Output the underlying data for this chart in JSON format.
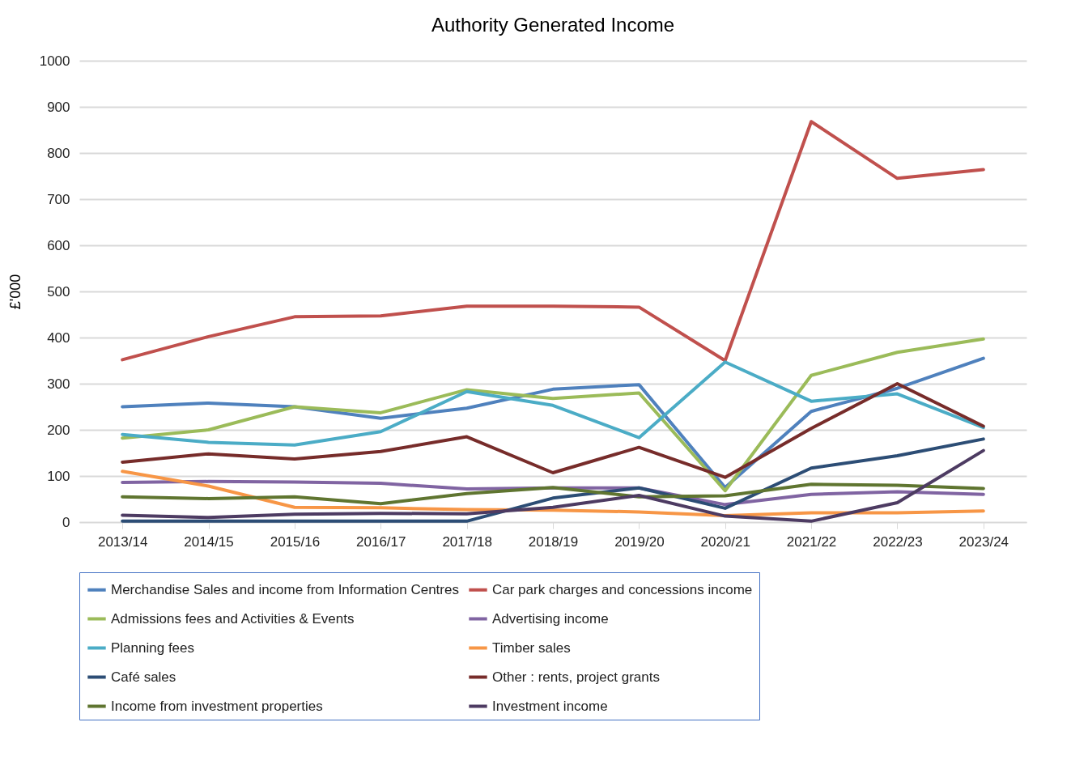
{
  "chart_data": {
    "type": "line",
    "title": "Authority Generated Income",
    "ylabel": "£'000",
    "categories": [
      "2013/14",
      "2014/15",
      "2015/16",
      "2016/17",
      "2017/18",
      "2018/19",
      "2019/20",
      "2020/21",
      "2021/22",
      "2022/23",
      "2023/24"
    ],
    "series": [
      {
        "name": "Merchandise Sales and income from Information Centres",
        "color": "#4f81bd",
        "values": [
          250,
          258,
          250,
          225,
          247,
          288,
          298,
          75,
          240,
          290,
          355
        ]
      },
      {
        "name": "Car park charges and concessions income",
        "color": "#c0504d",
        "values": [
          352,
          402,
          445,
          447,
          468,
          468,
          466,
          350,
          868,
          745,
          764
        ]
      },
      {
        "name": "Admissions fees and Activities & Events",
        "color": "#9bbb59",
        "values": [
          182,
          200,
          250,
          237,
          287,
          268,
          280,
          68,
          318,
          368,
          397
        ]
      },
      {
        "name": "Advertising income",
        "color": "#8064a2",
        "values": [
          86,
          88,
          87,
          84,
          72,
          74,
          74,
          38,
          60,
          66,
          60
        ]
      },
      {
        "name": "Planning fees",
        "color": "#4bacc6",
        "values": [
          190,
          173,
          167,
          196,
          283,
          253,
          183,
          347,
          262,
          278,
          205
        ]
      },
      {
        "name": "Timber sales",
        "color": "#f79646",
        "values": [
          110,
          78,
          32,
          31,
          27,
          26,
          22,
          14,
          20,
          20,
          24
        ]
      },
      {
        "name": "Café sales",
        "color": "#2c4d75",
        "values": [
          2,
          2,
          2,
          2,
          2,
          52,
          74,
          30,
          117,
          144,
          180
        ]
      },
      {
        "name": "Other : rents, project grants",
        "color": "#772c2a",
        "values": [
          130,
          148,
          137,
          153,
          185,
          107,
          162,
          97,
          203,
          300,
          208
        ]
      },
      {
        "name": "Income from investment properties",
        "color": "#5f7530",
        "values": [
          55,
          51,
          55,
          40,
          62,
          75,
          55,
          57,
          82,
          80,
          73
        ]
      },
      {
        "name": "Investment income",
        "color": "#4d3b62",
        "values": [
          15,
          10,
          17,
          19,
          18,
          32,
          58,
          13,
          2,
          42,
          155
        ]
      }
    ],
    "ylim": [
      0,
      1000
    ],
    "yticks": [
      0,
      100,
      200,
      300,
      400,
      500,
      600,
      700,
      800,
      900,
      {
        "value": 1000,
        "label": "1000"
      }
    ],
    "grid": "y",
    "legend": "bottom",
    "marker": "none",
    "line_style": "solid"
  }
}
